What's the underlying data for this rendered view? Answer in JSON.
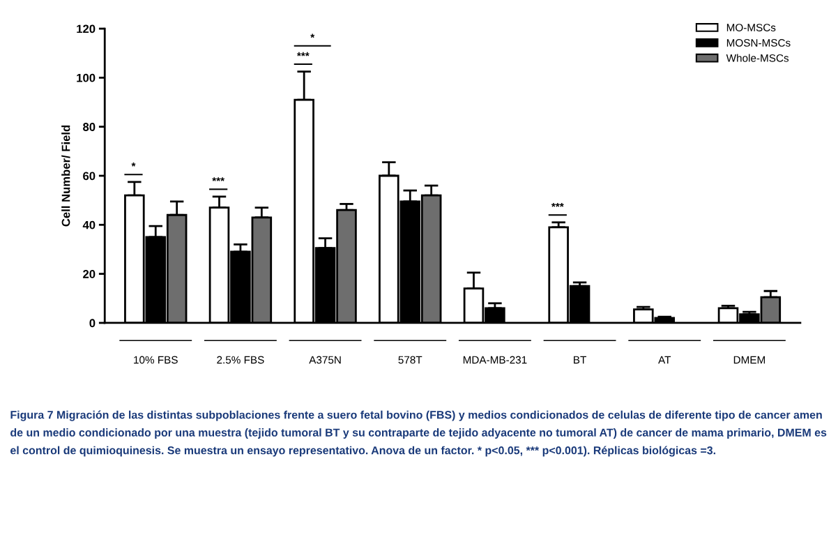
{
  "chart_data": {
    "type": "bar",
    "ylabel": "Cell Number/ Field",
    "categories": [
      "10% FBS",
      "2.5% FBS",
      "A375N",
      "578T",
      "MDA-MB-231",
      "BT",
      "AT",
      "DMEM"
    ],
    "series": [
      {
        "name": "MO-MSCs",
        "color": "#ffffff",
        "values": [
          52,
          47,
          91,
          60,
          14,
          39,
          5.5,
          6
        ],
        "errors": [
          [
            52,
            57.5
          ],
          [
            47,
            51.5
          ],
          [
            91,
            102.5
          ],
          [
            60,
            65.5
          ],
          [
            14,
            20.5
          ],
          [
            39,
            41
          ],
          [
            5.5,
            6.5
          ],
          [
            6,
            7
          ]
        ]
      },
      {
        "name": "MOSN-MSCs",
        "color": "#000000",
        "values": [
          35,
          29,
          30.5,
          49.5,
          6,
          15,
          2,
          3.5
        ],
        "errors": [
          [
            35,
            39.5
          ],
          [
            29,
            32
          ],
          [
            30.5,
            34.5
          ],
          [
            49.5,
            54
          ],
          [
            6,
            8
          ],
          [
            15,
            16.5
          ],
          [
            2,
            2.5
          ],
          [
            3.5,
            4.5
          ]
        ]
      },
      {
        "name": "Whole-MSCs",
        "color": "#6e6e6e",
        "values": [
          44,
          43,
          46,
          52,
          null,
          null,
          null,
          10.5
        ],
        "errors": [
          [
            44,
            49.5
          ],
          [
            43,
            47
          ],
          [
            46,
            48.5
          ],
          [
            52,
            56
          ],
          null,
          null,
          null,
          [
            10.5,
            13
          ]
        ]
      }
    ],
    "ylim": [
      0,
      120
    ],
    "yticks": [
      0,
      20,
      40,
      60,
      80,
      100,
      120
    ],
    "grid": false,
    "legend": "top right",
    "annotations": [
      "*",
      "***",
      "***",
      "*",
      "***",
      "Figura 7 Migración de las distintas subpoblaciones frente a suero fetal bovino (FBS) y medios condicionados de celulas de diferente tipo de cancer amen de un medio condicionado por una muestra (tejido tumoral BT y su contraparte de tejido adyacente no tumoral AT) de cancer de mama primario, DMEM es el control de quimioquinesis. Se muestra un ensayo representativo. Anova de un factor. * p<0.05, *** p<0.001). Réplicas biológicas =3."
    ]
  }
}
